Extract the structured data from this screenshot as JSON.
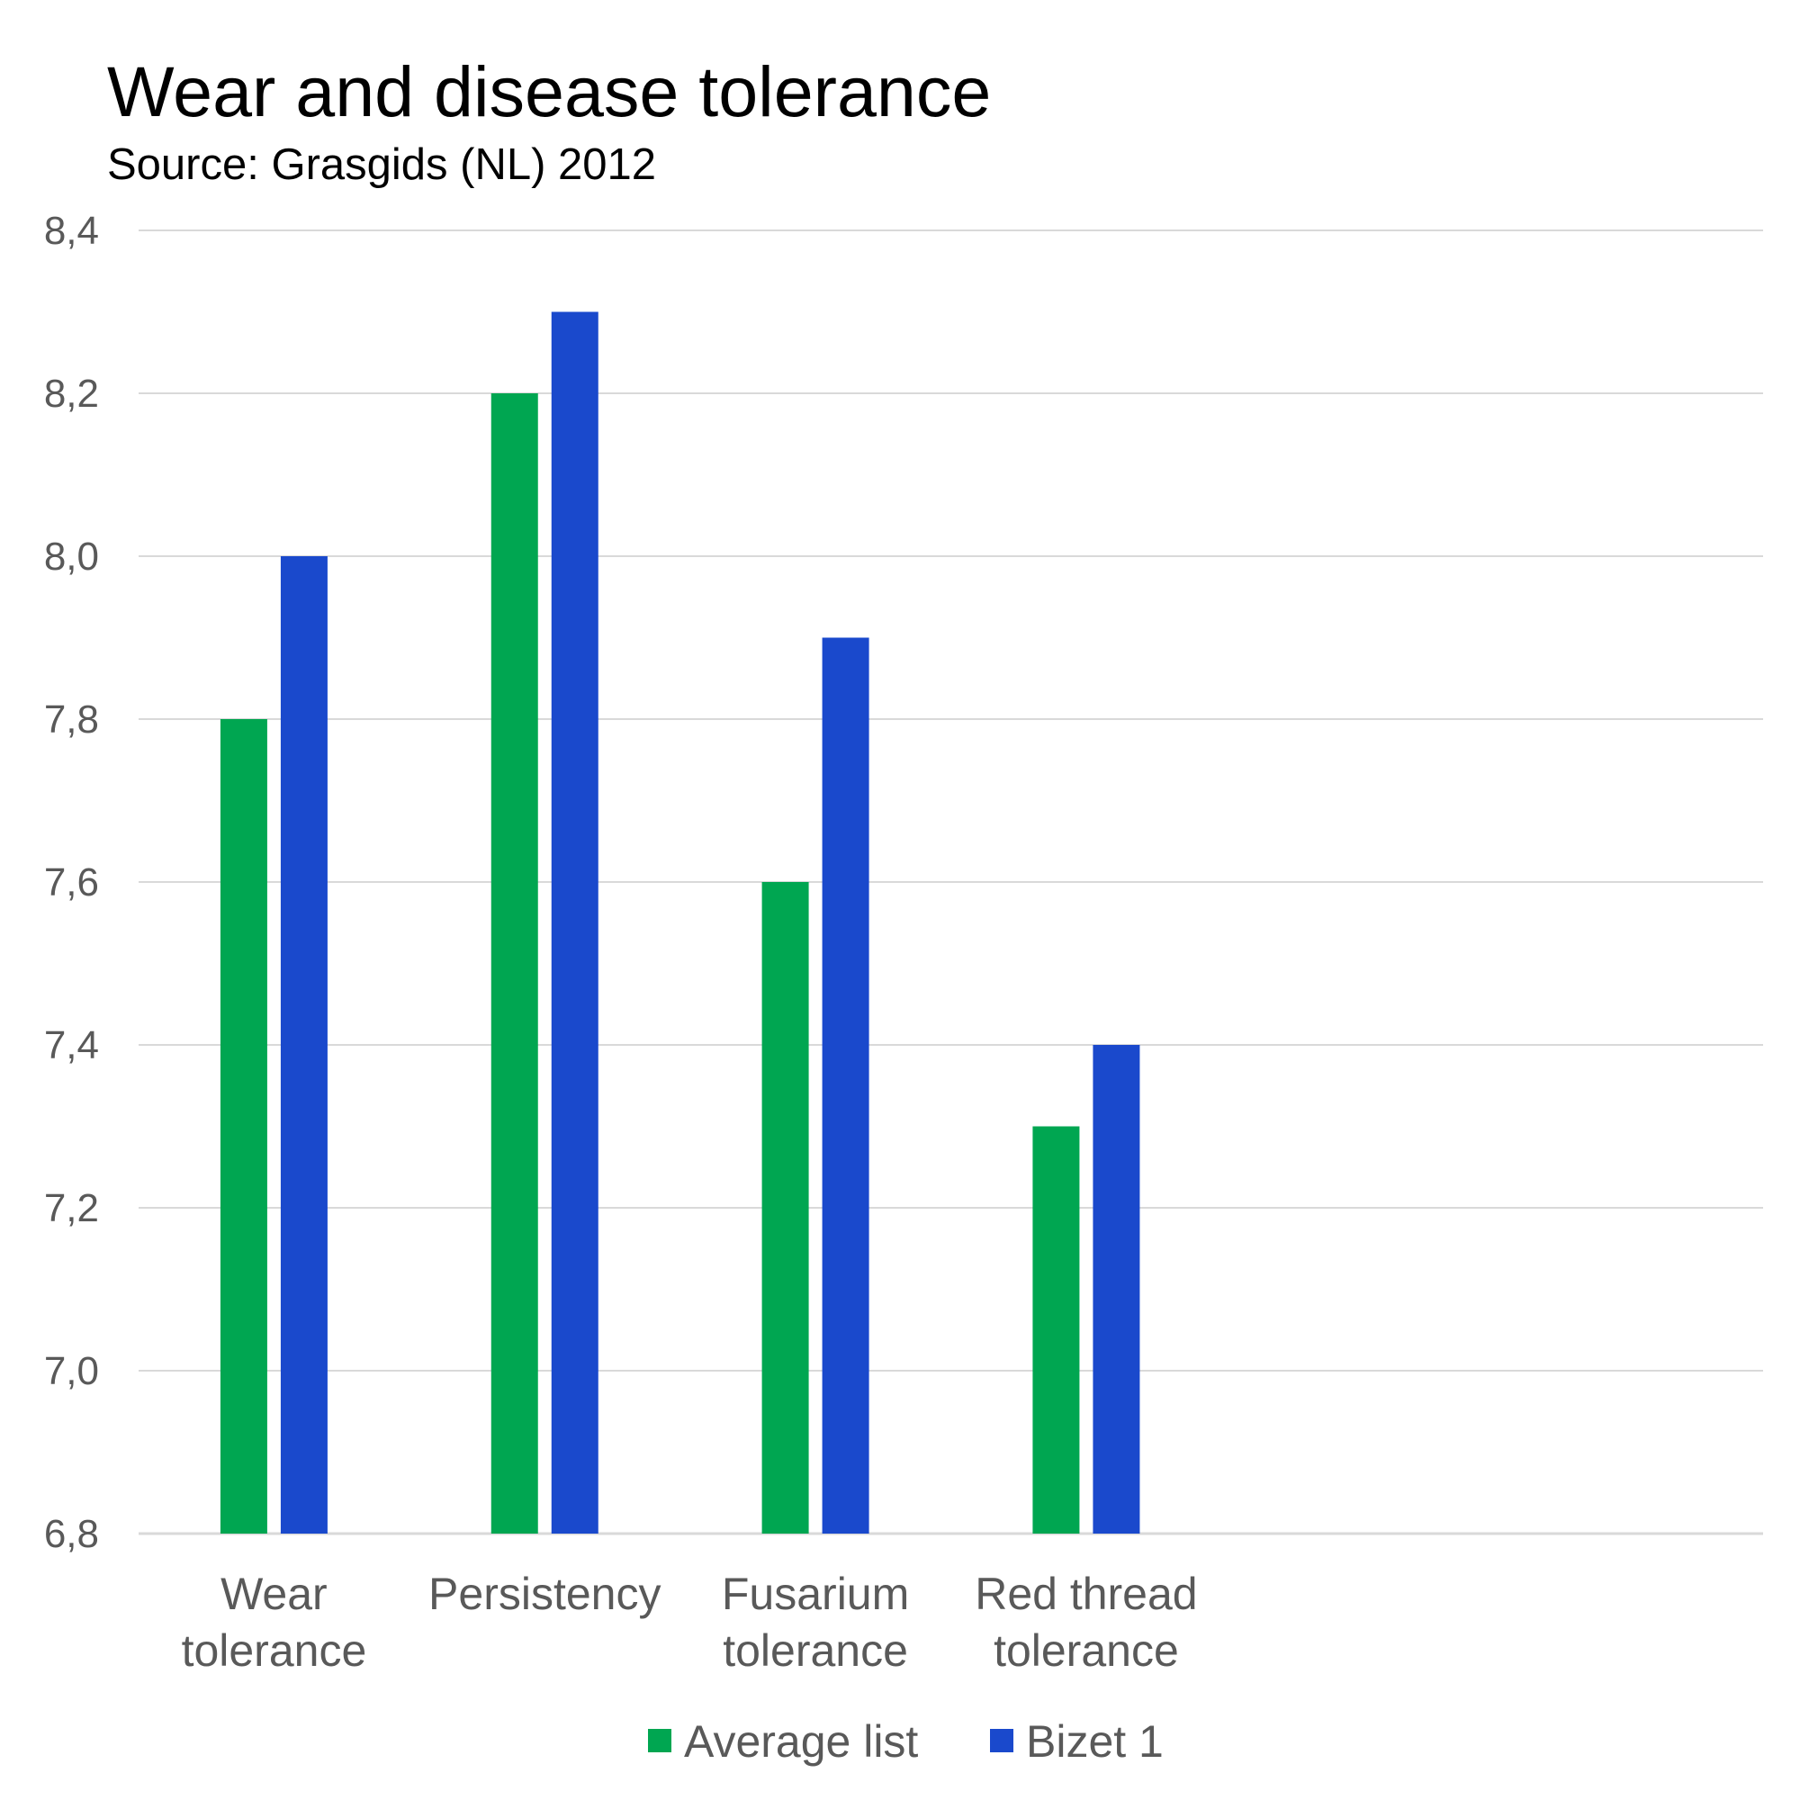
{
  "chart_data": {
    "type": "bar",
    "title": "Wear and disease tolerance",
    "subtitle": "Source: Grasgids (NL) 2012",
    "categories": [
      [
        "Wear",
        "tolerance"
      ],
      [
        "Persistency"
      ],
      [
        "Fusarium",
        "tolerance"
      ],
      [
        "Red thread",
        "tolerance"
      ],
      [
        ""
      ],
      [
        ""
      ]
    ],
    "series": [
      {
        "name": "Average list",
        "color": "#00A651",
        "values": [
          7.8,
          8.2,
          7.6,
          7.3,
          null,
          null
        ]
      },
      {
        "name": "Bizet 1",
        "color": "#1A49CC",
        "values": [
          8.0,
          8.3,
          7.9,
          7.4,
          null,
          null
        ]
      }
    ],
    "ylim": [
      6.8,
      8.4
    ],
    "yticks": [
      "6,8",
      "7,0",
      "7,2",
      "7,4",
      "7,6",
      "7,8",
      "8,0",
      "8,2",
      "8,4"
    ],
    "grid": true,
    "legend": "bottom"
  }
}
